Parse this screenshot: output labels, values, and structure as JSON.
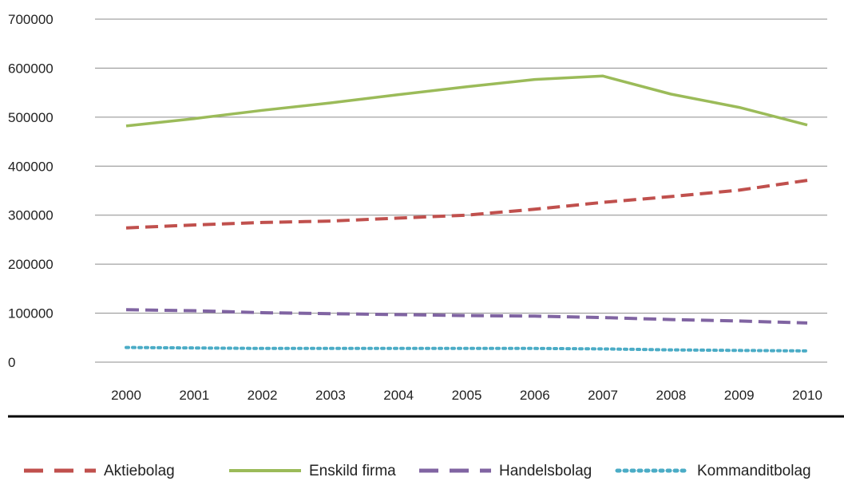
{
  "chart_data": {
    "type": "line",
    "title": "",
    "xlabel": "",
    "ylabel": "",
    "categories": [
      "2000",
      "2001",
      "2002",
      "2003",
      "2004",
      "2005",
      "2006",
      "2007",
      "2008",
      "2009",
      "2010"
    ],
    "yticks": [
      "0",
      "100000",
      "200000",
      "300000",
      "400000",
      "500000",
      "600000",
      "700000"
    ],
    "ylim": [
      0,
      700000
    ],
    "grid": "horizontal",
    "legend_position": "bottom",
    "series": [
      {
        "name": "Aktiebolag",
        "color": "#c0504d",
        "dash": "dashed",
        "values": [
          274000,
          280000,
          285000,
          288000,
          294000,
          300000,
          312000,
          326000,
          338000,
          351000,
          371000
        ]
      },
      {
        "name": "Enskild firma",
        "color": "#9bbb59",
        "dash": "solid",
        "values": [
          482000,
          497000,
          514000,
          529000,
          546000,
          562000,
          577000,
          584000,
          547000,
          520000,
          484000
        ]
      },
      {
        "name": "Handelsbolag",
        "color": "#8064a2",
        "dash": "dashed",
        "values": [
          107000,
          105000,
          101000,
          99000,
          97000,
          95000,
          94000,
          91000,
          87000,
          84000,
          80000
        ]
      },
      {
        "name": "Kommanditbolag",
        "color": "#4bacc6",
        "dash": "dotted",
        "values": [
          30000,
          29000,
          28000,
          28000,
          28000,
          28000,
          28000,
          27000,
          25000,
          24000,
          23000
        ]
      }
    ]
  }
}
